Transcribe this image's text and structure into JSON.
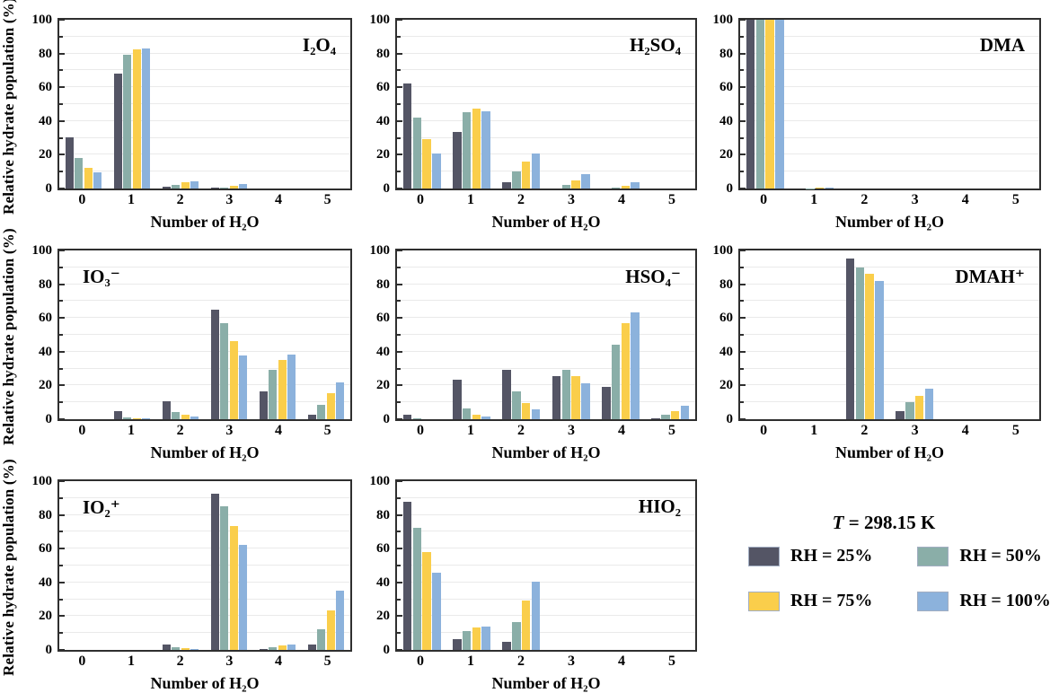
{
  "figure": {
    "y_label": "Relative hydrate population (%)",
    "x_label": "Number of H₂O",
    "categories": [
      "0",
      "1",
      "2",
      "3",
      "4",
      "5"
    ],
    "y_ticks": [
      0,
      20,
      40,
      60,
      80,
      100
    ],
    "y_minor_ticks": [
      10,
      30,
      50,
      70,
      90
    ],
    "ylim": [
      0,
      100
    ],
    "grid": "horizontal-light",
    "frame_color": "#2f2f2f",
    "gridline_color": "#eaeaea"
  },
  "legend": {
    "t_symbol": "T",
    "t_rest": " = 298.15 K",
    "items": [
      {
        "label": "RH = 25%",
        "color": "#545565"
      },
      {
        "label": "RH = 50%",
        "color": "#8aaea8"
      },
      {
        "label": "RH = 75%",
        "color": "#face4b"
      },
      {
        "label": "RH = 100%",
        "color": "#8cb2dc"
      }
    ]
  },
  "chart_data": [
    {
      "type": "bar",
      "title": "I₂O₄",
      "title_side": "right",
      "categories": [
        "0",
        "1",
        "2",
        "3",
        "4",
        "5"
      ],
      "xlabel": "Number of H₂O",
      "ylabel": "Relative hydrate population (%)",
      "ylim": [
        0,
        100
      ],
      "series": [
        {
          "name": "RH = 25%",
          "values": [
            30.5,
            68,
            1,
            0.5,
            0,
            0
          ]
        },
        {
          "name": "RH = 50%",
          "values": [
            18,
            79,
            2,
            0.5,
            0,
            0
          ]
        },
        {
          "name": "RH = 75%",
          "values": [
            12,
            82.5,
            3.5,
            1.5,
            0,
            0
          ]
        },
        {
          "name": "RH = 100%",
          "values": [
            9.5,
            83,
            4.5,
            2.5,
            0,
            0
          ]
        }
      ]
    },
    {
      "type": "bar",
      "title": "H₂SO₄",
      "title_side": "right",
      "categories": [
        "0",
        "1",
        "2",
        "3",
        "4",
        "5"
      ],
      "xlabel": "Number of H₂O",
      "ylabel": "Relative hydrate population (%)",
      "ylim": [
        0,
        100
      ],
      "series": [
        {
          "name": "RH = 25%",
          "values": [
            62,
            33.5,
            3.5,
            0,
            0,
            0
          ]
        },
        {
          "name": "RH = 50%",
          "values": [
            42,
            45,
            10,
            2,
            0.5,
            0
          ]
        },
        {
          "name": "RH = 75%",
          "values": [
            29.5,
            47.5,
            16,
            5,
            1.5,
            0
          ]
        },
        {
          "name": "RH = 100%",
          "values": [
            21,
            45.5,
            21,
            8.5,
            3.5,
            0
          ]
        }
      ]
    },
    {
      "type": "bar",
      "title": "DMA",
      "title_side": "right",
      "categories": [
        "0",
        "1",
        "2",
        "3",
        "4",
        "5"
      ],
      "xlabel": "Number of H₂O",
      "ylabel": "Relative hydrate population (%)",
      "ylim": [
        0,
        100
      ],
      "series": [
        {
          "name": "RH = 25%",
          "values": [
            100,
            0,
            0,
            0,
            0,
            0
          ]
        },
        {
          "name": "RH = 50%",
          "values": [
            100,
            0.2,
            0,
            0,
            0,
            0
          ]
        },
        {
          "name": "RH = 75%",
          "values": [
            100,
            0.3,
            0,
            0,
            0,
            0
          ]
        },
        {
          "name": "RH = 100%",
          "values": [
            100,
            0.5,
            0,
            0,
            0,
            0
          ]
        }
      ]
    },
    {
      "type": "bar",
      "title": "IO₃⁻",
      "title_side": "left",
      "categories": [
        "0",
        "1",
        "2",
        "3",
        "4",
        "5"
      ],
      "xlabel": "Number of H₂O",
      "ylabel": "Relative hydrate population (%)",
      "ylim": [
        0,
        100
      ],
      "series": [
        {
          "name": "RH = 25%",
          "values": [
            0,
            5,
            10.5,
            65,
            16.5,
            2.5
          ]
        },
        {
          "name": "RH = 50%",
          "values": [
            0,
            1,
            4.5,
            57,
            29,
            8.5
          ]
        },
        {
          "name": "RH = 75%",
          "values": [
            0,
            0.4,
            2.5,
            46.5,
            35,
            15.5
          ]
        },
        {
          "name": "RH = 100%",
          "values": [
            0,
            0.3,
            1.5,
            38,
            38.5,
            22
          ]
        }
      ]
    },
    {
      "type": "bar",
      "title": "HSO₄⁻",
      "title_side": "right",
      "categories": [
        "0",
        "1",
        "2",
        "3",
        "4",
        "5"
      ],
      "xlabel": "Number of H₂O",
      "ylabel": "Relative hydrate population (%)",
      "ylim": [
        0,
        100
      ],
      "series": [
        {
          "name": "RH = 25%",
          "values": [
            2.5,
            23.5,
            29,
            25.5,
            19,
            0.5
          ]
        },
        {
          "name": "RH = 50%",
          "values": [
            0.3,
            6.5,
            16.5,
            29.5,
            44,
            2.5
          ]
        },
        {
          "name": "RH = 75%",
          "values": [
            0,
            2.5,
            9.5,
            25.5,
            57,
            5
          ]
        },
        {
          "name": "RH = 100%",
          "values": [
            0,
            1.5,
            6,
            21.5,
            63.5,
            8
          ]
        }
      ]
    },
    {
      "type": "bar",
      "title": "DMAH⁺",
      "title_side": "right",
      "categories": [
        "0",
        "1",
        "2",
        "3",
        "4",
        "5"
      ],
      "xlabel": "Number of H₂O",
      "ylabel": "Relative hydrate population (%)",
      "ylim": [
        0,
        100
      ],
      "series": [
        {
          "name": "RH = 25%",
          "values": [
            0,
            0,
            95,
            5,
            0,
            0
          ]
        },
        {
          "name": "RH = 50%",
          "values": [
            0,
            0,
            90,
            10,
            0,
            0
          ]
        },
        {
          "name": "RH = 75%",
          "values": [
            0,
            0,
            86,
            14,
            0,
            0
          ]
        },
        {
          "name": "RH = 100%",
          "values": [
            0,
            0,
            82,
            18,
            0,
            0
          ]
        }
      ]
    },
    {
      "type": "bar",
      "title": "IO₂⁺",
      "title_side": "left",
      "categories": [
        "0",
        "1",
        "2",
        "3",
        "4",
        "5"
      ],
      "xlabel": "Number of H₂O",
      "ylabel": "Relative hydrate population (%)",
      "ylim": [
        0,
        100
      ],
      "series": [
        {
          "name": "RH = 25%",
          "values": [
            0,
            0,
            3,
            92.5,
            0.8,
            3
          ]
        },
        {
          "name": "RH = 50%",
          "values": [
            0,
            0,
            1.5,
            85,
            1.8,
            12
          ]
        },
        {
          "name": "RH = 75%",
          "values": [
            0,
            0,
            1,
            73.5,
            2.5,
            23.5
          ]
        },
        {
          "name": "RH = 100%",
          "values": [
            0,
            0,
            0.4,
            62,
            3,
            35
          ]
        }
      ]
    },
    {
      "type": "bar",
      "title": "HIO₂",
      "title_side": "right",
      "categories": [
        "0",
        "1",
        "2",
        "3",
        "4",
        "5"
      ],
      "xlabel": "Number of H₂O",
      "ylabel": "Relative hydrate population (%)",
      "ylim": [
        0,
        100
      ],
      "series": [
        {
          "name": "RH = 25%",
          "values": [
            88,
            6.5,
            5,
            0,
            0,
            0
          ]
        },
        {
          "name": "RH = 50%",
          "values": [
            72.5,
            11,
            16.5,
            0,
            0,
            0
          ]
        },
        {
          "name": "RH = 75%",
          "values": [
            58,
            13.5,
            29,
            0,
            0,
            0
          ]
        },
        {
          "name": "RH = 100%",
          "values": [
            45.5,
            14,
            40.5,
            0,
            0,
            0
          ]
        }
      ]
    }
  ]
}
